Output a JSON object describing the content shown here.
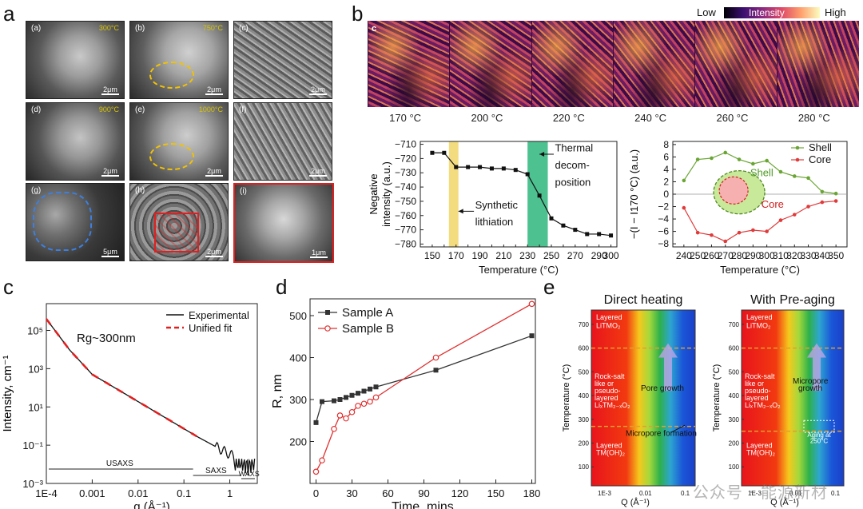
{
  "panels": {
    "a": "a",
    "b": "b",
    "c": "c",
    "d": "d",
    "e": "e"
  },
  "panel_a": {
    "tiles": [
      {
        "label": "(a)",
        "temp": "300°C",
        "scale": "2μm"
      },
      {
        "label": "(b)",
        "temp": "750°C",
        "scale": "2μm"
      },
      {
        "label": "(c)",
        "temp": "",
        "scale": "2μm"
      },
      {
        "label": "(d)",
        "temp": "900°C",
        "scale": "2μm"
      },
      {
        "label": "(e)",
        "temp": "1000°C",
        "scale": "2μm"
      },
      {
        "label": "(f)",
        "temp": "",
        "scale": "2μm"
      },
      {
        "label": "(g)",
        "temp": "",
        "scale": "5μm"
      },
      {
        "label": "(h)",
        "temp": "",
        "scale": "2μm"
      },
      {
        "label": "(i)",
        "temp": "",
        "scale": "1μm"
      }
    ]
  },
  "panel_b": {
    "colorbar": {
      "low": "Low",
      "mid": "Intensity",
      "high": "High"
    },
    "strip_label": "c",
    "temperatures": [
      "170 °C",
      "200 °C",
      "220 °C",
      "240 °C",
      "260 °C",
      "280 °C"
    ]
  },
  "chart_data": [
    {
      "id": "b-left",
      "type": "line",
      "xlabel": "Temperature (°C)",
      "ylabel": "Negative intensity (a.u.)",
      "xlim": [
        140,
        305
      ],
      "ylim": [
        -782,
        -708
      ],
      "xticks": [
        150,
        160,
        170,
        180,
        190,
        200,
        210,
        220,
        230,
        240,
        250,
        260,
        270,
        280,
        290,
        300
      ],
      "yticks": [
        -710,
        -720,
        -730,
        -740,
        -750,
        -760,
        -770,
        -780
      ],
      "x": [
        150,
        160,
        170,
        180,
        190,
        200,
        210,
        220,
        230,
        240,
        250,
        260,
        270,
        280,
        290,
        300
      ],
      "y": [
        -716,
        -716,
        -726,
        -726,
        -726,
        -727,
        -727,
        -728,
        -731,
        -746,
        -762,
        -767,
        -770,
        -773,
        -773,
        -774
      ],
      "annotations": [
        "Synthetic lithiation",
        "Thermal decom-position"
      ],
      "bands": [
        {
          "from": 164,
          "to": 172,
          "color": "#f3dc80"
        },
        {
          "from": 230,
          "to": 247,
          "color": "#4dc190"
        }
      ]
    },
    {
      "id": "b-right",
      "type": "line",
      "xlabel": "Temperature (°C)",
      "ylabel": "−(I − I170 °C) (a.u.)",
      "xlim": [
        232,
        358
      ],
      "ylim": [
        -8.5,
        8.5
      ],
      "xticks": [
        240,
        250,
        260,
        270,
        280,
        290,
        300,
        310,
        320,
        330,
        340,
        350
      ],
      "yticks": [
        8,
        6,
        4,
        2,
        0,
        -2,
        -4,
        -6,
        -8
      ],
      "series": [
        {
          "name": "Shell",
          "color": "#6aa534",
          "x": [
            240,
            250,
            260,
            270,
            280,
            290,
            300,
            310,
            320,
            330,
            340,
            350
          ],
          "y": [
            2.2,
            5.6,
            5.8,
            6.7,
            5.6,
            4.9,
            5.4,
            3.6,
            2.9,
            2.6,
            0.4,
            0.1
          ]
        },
        {
          "name": "Core",
          "color": "#e03a3a",
          "x": [
            240,
            250,
            260,
            270,
            280,
            290,
            300,
            310,
            320,
            330,
            340,
            350
          ],
          "y": [
            -2.2,
            -6.2,
            -6.6,
            -7.6,
            -6.2,
            -5.8,
            -6.0,
            -4.2,
            -3.3,
            -2.0,
            -1.3,
            -1.1
          ]
        }
      ],
      "inset_labels": [
        "Shell",
        "Core"
      ]
    },
    {
      "id": "c",
      "type": "line",
      "xlabel": "q (Å⁻¹)",
      "ylabel": "Intensity, cm⁻¹",
      "xscale": "log",
      "yscale": "log",
      "xticks": [
        "1E-4",
        "0.001",
        "0.01",
        "0.1",
        "1"
      ],
      "yticks": [
        "10⁵",
        "10³",
        "10¹",
        "10⁻¹",
        "10⁻³"
      ],
      "legend": [
        "Experimental",
        "Unified fit"
      ],
      "annotation": "Rg~300nm",
      "ranges": [
        "USAXS",
        "SAXS",
        "WAXS"
      ]
    },
    {
      "id": "d",
      "type": "line",
      "xlabel": "Time, mins",
      "ylabel": "R, nm",
      "xlim": [
        -5,
        183
      ],
      "ylim": [
        100,
        540
      ],
      "xticks": [
        0,
        30,
        60,
        90,
        120,
        150,
        180
      ],
      "yticks": [
        200,
        300,
        400,
        500
      ],
      "series": [
        {
          "name": "Sample A",
          "color": "#333333",
          "x": [
            0,
            5,
            15,
            20,
            25,
            30,
            35,
            40,
            45,
            50,
            100,
            180
          ],
          "y": [
            245,
            295,
            297,
            300,
            305,
            310,
            315,
            320,
            325,
            330,
            370,
            452
          ]
        },
        {
          "name": "Sample B",
          "color": "#e03030",
          "x": [
            0,
            5,
            15,
            20,
            25,
            30,
            35,
            40,
            45,
            50,
            100,
            180
          ],
          "y": [
            128,
            155,
            230,
            262,
            255,
            270,
            285,
            290,
            295,
            305,
            400,
            528
          ]
        }
      ]
    }
  ],
  "panel_e": {
    "left_title": "Direct heating",
    "right_title": "With Pre-aging",
    "ylabel": "Temperature (°C)",
    "xlabel": "Q (Å⁻¹)",
    "yticks": [
      "700",
      "600",
      "500",
      "400",
      "300",
      "200",
      "100"
    ],
    "xticks": [
      "1E-3",
      "0.01",
      "0.1"
    ],
    "phase_top": "Layered LiTMO2",
    "phase_mid": "Rock-salt like or pseudo-layered LixTM2-xO2",
    "phase_bot": "Layered TM(OH)2",
    "pore_growth": "Pore growth",
    "micropore_formation": "Micropore formation",
    "micropore_growth": "Micropore growth",
    "aging": "Aging at 250°C"
  },
  "watermark": "公众号 · 能源新材"
}
